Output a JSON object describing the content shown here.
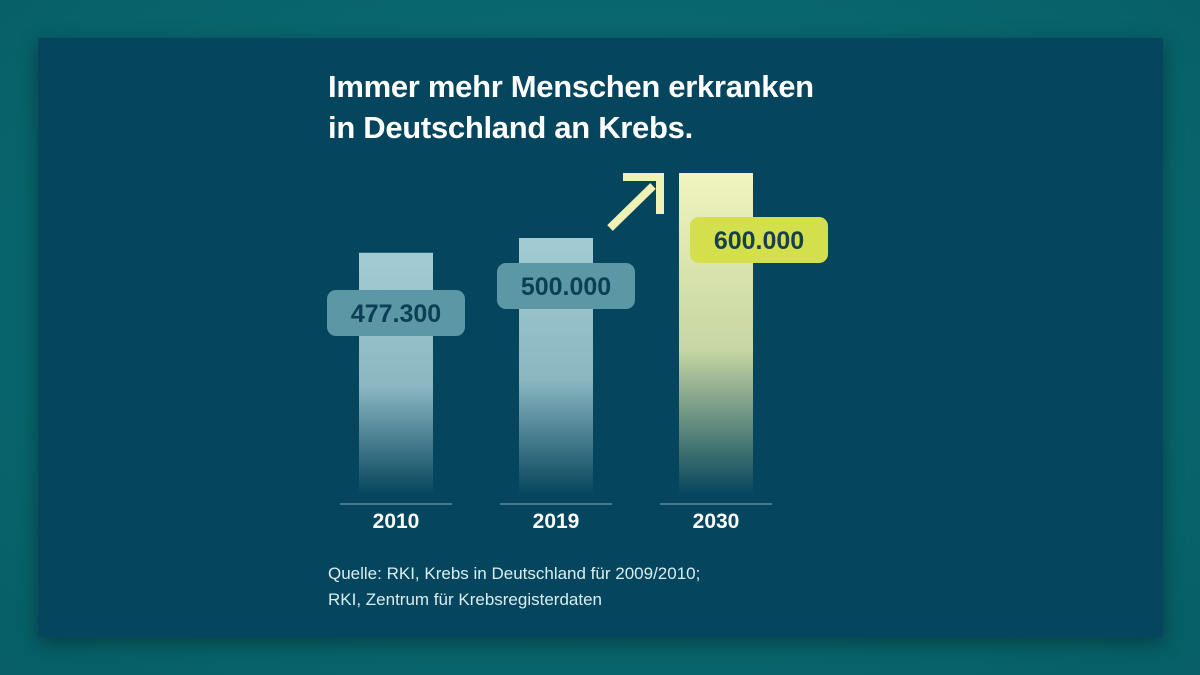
{
  "title_lines": [
    "Immer mehr Menschen erkranken",
    "in Deutschland an Krebs."
  ],
  "source_lines": [
    "Quelle: RKI, Krebs in Deutschland für 2009/2010;",
    "RKI, Zentrum für Krebsregisterdaten"
  ],
  "colors": {
    "background": "#05455d",
    "bar_actual": "#a3cbd3",
    "bar_forecast": "#e8efaf",
    "label_actual_bg": "#5b97a5",
    "label_actual_text": "#0b3f55",
    "label_forecast_bg": "#d4e04b",
    "label_forecast_text": "#173f4e",
    "arrow": "#eef3b5",
    "axis_text": "#ffffff"
  },
  "chart_data": {
    "type": "bar",
    "title": "Immer mehr Menschen erkranken in Deutschland an Krebs.",
    "xlabel": "",
    "ylabel": "",
    "categories": [
      "2010",
      "2019",
      "2030"
    ],
    "values": [
      477300,
      500000,
      600000
    ],
    "value_labels": [
      "477.300",
      "500.000",
      "600.000"
    ],
    "forecast": [
      false,
      false,
      true
    ],
    "annotation": "arrow pointing up-right between 2019 and 2030 (increase)",
    "ylim": [
      0,
      600000
    ],
    "grid": false,
    "legend": "none"
  }
}
